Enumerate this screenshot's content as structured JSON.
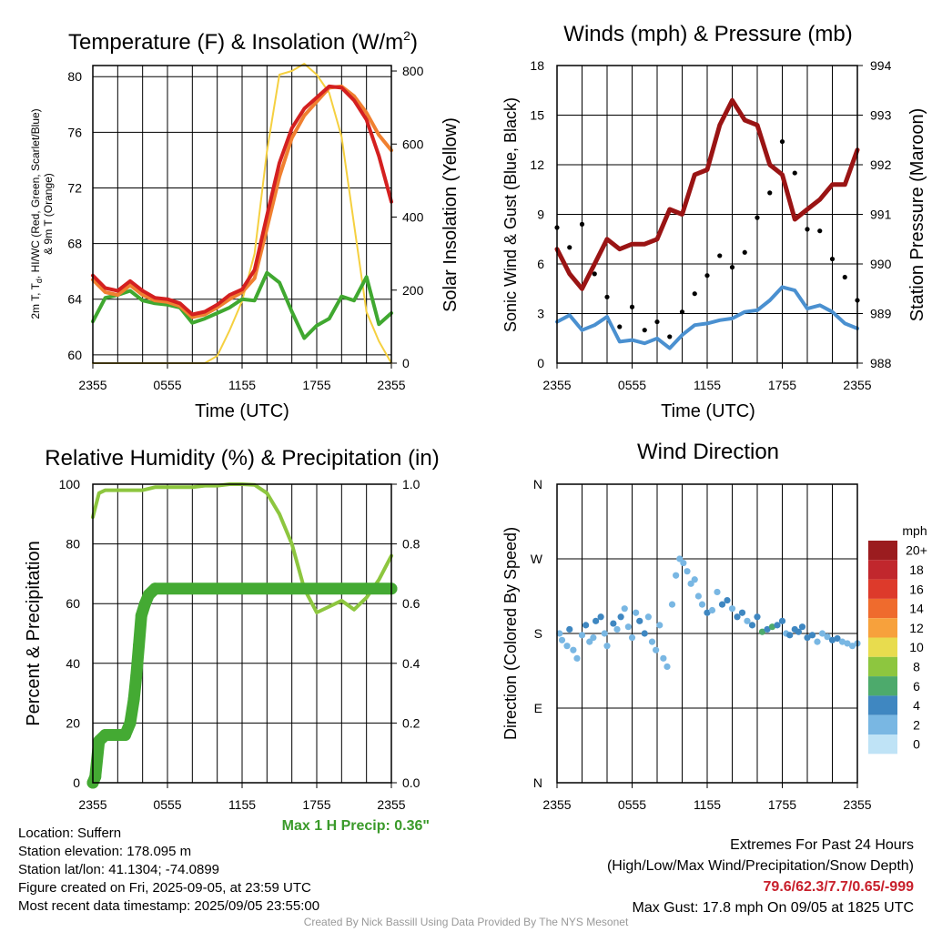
{
  "panels": {
    "temp": {
      "title": "Temperature (F) & Insolation (W/m",
      "title_sup": "2",
      "title_close": ")",
      "xlabel": "Time (UTC)",
      "ylabel_left_line1_pre": "2m T, T",
      "ylabel_left_line1_sub": "d",
      "ylabel_left_line1_post": ", HI/WC (Red, Green, Scarlet/Blue)",
      "ylabel_left_line2": "& 9m T (Orange)",
      "ylabel_right": "Solar Insolation (Yellow)"
    },
    "wind": {
      "title": "Winds (mph) & Pressure (mb)",
      "xlabel": "Time (UTC)",
      "ylabel_left": "Sonic Wind & Gust (Blue, Black)",
      "ylabel_right": "Station Pressure (Maroon)"
    },
    "rh": {
      "title": "Relative Humidity (%) & Precipitation (in)",
      "ylabel_left": "Percent & Precipitation",
      "max_precip": "Max 1 H Precip: 0.36\""
    },
    "dir": {
      "title": "Wind Direction",
      "ylabel_left": "Direction (Colored By Speed)",
      "legend_title": "mph"
    }
  },
  "info": {
    "location": "Location: Suffern",
    "elevation": "Station elevation: 178.095 m",
    "latlon": "Station lat/lon: 41.1304; -74.0899",
    "created": "Figure created on Fri, 2025-09-05, at 23:59 UTC",
    "recent": "Most recent data timestamp: 2025/09/05 23:55:00",
    "extremes_title": "Extremes For Past 24 Hours",
    "extremes_sub": "(High/Low/Max Wind/Precipitation/Snow Depth)",
    "extremes_values": "79.6/62.3/7.7/0.65/-999",
    "max_gust": "Max Gust: 17.8 mph On 09/05 at 1825 UTC",
    "credit": "Created By Nick Bassill Using Data Provided By The NYS Mesonet"
  },
  "chart_data": [
    {
      "type": "line",
      "panel": "temp",
      "x_ticks": [
        "2355",
        "0555",
        "1155",
        "1755",
        "2355"
      ],
      "x_hours": [
        0,
        6,
        12,
        18,
        24
      ],
      "y_left_ticks": [
        60,
        64,
        68,
        72,
        76,
        80
      ],
      "y_left_range": [
        59.4,
        80.8
      ],
      "y_right_ticks": [
        0,
        200,
        400,
        600,
        800
      ],
      "y_right_range": [
        0,
        815
      ],
      "colors": {
        "t2m": "#d42020",
        "t9m": "#f08030",
        "td": "#40a830",
        "solar": "#f5d040"
      },
      "series": [
        {
          "name": "2m T",
          "axis": "left",
          "x": [
            0,
            1,
            2,
            3,
            4,
            5,
            6,
            7,
            8,
            9,
            10,
            11,
            12,
            13,
            14,
            15,
            16,
            17,
            18,
            19,
            20,
            21,
            22,
            23,
            24
          ],
          "y": [
            65.7,
            64.8,
            64.6,
            65.3,
            64.6,
            64.1,
            64.0,
            63.7,
            62.9,
            63.1,
            63.6,
            64.3,
            64.7,
            66.1,
            70.0,
            73.8,
            76.3,
            77.7,
            78.5,
            79.3,
            79.2,
            78.3,
            76.9,
            74.3,
            71.0
          ]
        },
        {
          "name": "9m T",
          "axis": "left",
          "x": [
            0,
            1,
            2,
            3,
            4,
            5,
            6,
            7,
            8,
            9,
            10,
            11,
            12,
            13,
            14,
            15,
            16,
            17,
            18,
            19,
            20,
            21,
            22,
            23,
            24
          ],
          "y": [
            65.4,
            64.5,
            64.3,
            65.0,
            64.3,
            63.9,
            63.8,
            63.5,
            62.7,
            62.9,
            63.4,
            64.0,
            64.5,
            65.5,
            69.1,
            72.8,
            75.6,
            77.2,
            78.2,
            79.2,
            79.3,
            78.6,
            77.4,
            75.8,
            74.7
          ]
        },
        {
          "name": "Td",
          "axis": "left",
          "x": [
            0,
            1,
            2,
            3,
            4,
            5,
            6,
            7,
            8,
            9,
            10,
            11,
            12,
            13,
            14,
            15,
            16,
            17,
            18,
            19,
            20,
            21,
            22,
            23,
            24
          ],
          "y": [
            62.4,
            64.1,
            64.3,
            64.6,
            63.9,
            63.7,
            63.6,
            63.4,
            62.3,
            62.6,
            63.0,
            63.4,
            64.0,
            63.9,
            65.9,
            65.2,
            63.1,
            61.2,
            62.1,
            62.6,
            64.2,
            63.9,
            65.6,
            62.2,
            63.0
          ]
        },
        {
          "name": "Solar",
          "axis": "right",
          "x": [
            0,
            1,
            2,
            3,
            4,
            5,
            6,
            7,
            8,
            9,
            10,
            11,
            12,
            13,
            14,
            15,
            16,
            17,
            18,
            19,
            20,
            21,
            22,
            23,
            24
          ],
          "y": [
            0,
            0,
            0,
            0,
            0,
            0,
            0,
            0,
            0,
            0,
            20,
            90,
            170,
            300,
            580,
            790,
            800,
            820,
            790,
            740,
            620,
            380,
            140,
            60,
            0
          ]
        }
      ]
    },
    {
      "type": "line",
      "panel": "wind",
      "x_ticks": [
        "2355",
        "0555",
        "1155",
        "1755",
        "2355"
      ],
      "x_hours": [
        0,
        6,
        12,
        18,
        24
      ],
      "y_left_ticks": [
        0,
        3,
        6,
        9,
        12,
        15,
        18
      ],
      "y_left_range": [
        0,
        18
      ],
      "y_right_ticks": [
        988,
        989,
        990,
        991,
        992,
        993,
        994
      ],
      "y_right_range": [
        988,
        994
      ],
      "colors": {
        "wind": "#4a90d0",
        "gust": "#000000",
        "pressure": "#9a1414"
      },
      "series": [
        {
          "name": "Sonic Wind",
          "axis": "left",
          "x": [
            0,
            1,
            2,
            3,
            4,
            5,
            6,
            7,
            8,
            9,
            10,
            11,
            12,
            13,
            14,
            15,
            16,
            17,
            18,
            19,
            20,
            21,
            22,
            23,
            24
          ],
          "y": [
            2.5,
            2.9,
            2.0,
            2.3,
            2.8,
            1.3,
            1.4,
            1.2,
            1.5,
            0.9,
            1.7,
            2.3,
            2.4,
            2.6,
            2.7,
            3.1,
            3.2,
            3.8,
            4.6,
            4.4,
            3.3,
            3.5,
            3.1,
            2.4,
            2.1
          ]
        },
        {
          "name": "Gust",
          "axis": "left",
          "x": [
            0,
            1,
            2,
            3,
            4,
            5,
            6,
            7,
            8,
            9,
            10,
            11,
            12,
            13,
            14,
            15,
            16,
            17,
            18,
            19,
            20,
            21,
            22,
            23,
            24
          ],
          "y": [
            8.2,
            7.0,
            8.4,
            5.4,
            4.0,
            2.2,
            3.4,
            2.0,
            2.5,
            1.6,
            3.1,
            4.2,
            5.3,
            6.5,
            5.8,
            6.7,
            8.8,
            10.3,
            13.4,
            11.5,
            8.1,
            8.0,
            6.3,
            5.2,
            3.8
          ]
        },
        {
          "name": "Station Pressure",
          "axis": "right",
          "x": [
            0,
            1,
            2,
            3,
            4,
            5,
            6,
            7,
            8,
            9,
            10,
            11,
            12,
            13,
            14,
            15,
            16,
            17,
            18,
            19,
            20,
            21,
            22,
            23,
            24
          ],
          "y": [
            990.3,
            989.8,
            989.5,
            990.0,
            990.5,
            990.3,
            990.4,
            990.4,
            990.5,
            991.1,
            991.0,
            991.8,
            991.9,
            992.8,
            993.3,
            992.9,
            992.8,
            992.0,
            991.8,
            990.9,
            991.1,
            991.3,
            991.6,
            991.6,
            992.3
          ]
        }
      ]
    },
    {
      "type": "line",
      "panel": "rh",
      "x_ticks": [
        "2355",
        "0555",
        "1155",
        "1755",
        "2355"
      ],
      "x_hours": [
        0,
        6,
        12,
        18,
        24
      ],
      "y_left_ticks": [
        0,
        20,
        40,
        60,
        80,
        100
      ],
      "y_left_range": [
        0,
        100
      ],
      "y_right_ticks": [
        "0.0",
        "0.2",
        "0.4",
        "0.6",
        "0.8",
        "1.0"
      ],
      "y_right_range": [
        0,
        1.0
      ],
      "colors": {
        "rh": "#8dc63f",
        "precip": "#44aa33"
      },
      "series": [
        {
          "name": "Relative Humidity",
          "axis": "left",
          "x": [
            0,
            0.5,
            1,
            2,
            3,
            4,
            5,
            6,
            7,
            8,
            9,
            10,
            11,
            12,
            13,
            14,
            15,
            16,
            17,
            18,
            19,
            20,
            21,
            22,
            23,
            24
          ],
          "y": [
            89,
            97,
            98,
            98,
            98,
            98,
            99,
            99,
            99,
            99,
            99.5,
            99.5,
            100,
            100,
            99.8,
            97,
            90,
            80,
            65,
            57,
            59,
            61,
            58,
            62,
            68,
            76
          ]
        },
        {
          "name": "Precipitation",
          "axis": "right",
          "x": [
            0,
            0.2,
            0.5,
            1,
            2,
            2.6,
            3,
            3.3,
            3.5,
            3.7,
            3.9,
            4.2,
            4.5,
            5,
            6,
            8,
            10,
            12,
            14,
            16,
            18,
            20,
            22,
            24
          ],
          "y": [
            0.0,
            0.02,
            0.14,
            0.16,
            0.16,
            0.16,
            0.2,
            0.28,
            0.36,
            0.46,
            0.56,
            0.6,
            0.63,
            0.65,
            0.65,
            0.65,
            0.65,
            0.65,
            0.65,
            0.65,
            0.65,
            0.65,
            0.65,
            0.65
          ]
        }
      ]
    },
    {
      "type": "scatter",
      "panel": "dir",
      "x_ticks": [
        "2355",
        "0555",
        "1155",
        "1755",
        "2355"
      ],
      "x_hours": [
        0,
        6,
        12,
        18,
        24
      ],
      "y_ticks": [
        "N",
        "E",
        "S",
        "W",
        "N"
      ],
      "y_range_deg": [
        360,
        0
      ],
      "legend": {
        "labels": [
          "20+",
          "18",
          "16",
          "14",
          "12",
          "10",
          "8",
          "6",
          "4",
          "2",
          "0"
        ],
        "colors": [
          "#9b1c1f",
          "#c1272d",
          "#dd3a2b",
          "#ef6b2d",
          "#f7a13c",
          "#e8dc4e",
          "#8dc63f",
          "#4daa6c",
          "#3f87c1",
          "#79b7e3",
          "#bfe3f6"
        ]
      },
      "series": [
        {
          "name": "Direction",
          "x": [
            0.2,
            0.4,
            0.8,
            1.0,
            1.3,
            1.6,
            2.0,
            2.3,
            2.6,
            2.9,
            3.1,
            3.5,
            3.8,
            4.0,
            4.5,
            4.8,
            5.1,
            5.4,
            5.7,
            6.0,
            6.3,
            6.6,
            7.0,
            7.3,
            7.6,
            7.9,
            8.2,
            8.5,
            8.8,
            9.2,
            9.5,
            9.8,
            10.1,
            10.4,
            10.7,
            11.0,
            11.3,
            11.6,
            12.0,
            12.4,
            12.8,
            13.2,
            13.6,
            14.0,
            14.4,
            14.8,
            15.2,
            15.6,
            16.0,
            16.4,
            16.8,
            17.2,
            17.6,
            18.0,
            18.3,
            18.6,
            19.0,
            19.3,
            19.6,
            20.0,
            20.4,
            20.8,
            21.2,
            21.6,
            22.0,
            22.4,
            22.8,
            23.2,
            23.6,
            24.0
          ],
          "y": [
            180,
            172,
            165,
            185,
            160,
            150,
            178,
            190,
            170,
            175,
            195,
            200,
            180,
            165,
            192,
            185,
            200,
            210,
            188,
            175,
            205,
            195,
            180,
            200,
            170,
            160,
            190,
            150,
            140,
            215,
            250,
            270,
            265,
            255,
            240,
            245,
            225,
            215,
            205,
            208,
            230,
            215,
            220,
            210,
            200,
            205,
            195,
            190,
            200,
            182,
            185,
            188,
            190,
            195,
            180,
            178,
            185,
            182,
            188,
            175,
            178,
            170,
            180,
            176,
            172,
            174,
            170,
            168,
            165,
            168
          ],
          "speed": [
            2,
            1,
            1,
            3,
            2,
            1,
            2,
            3,
            2,
            2,
            4,
            3,
            2,
            2,
            4,
            2,
            3,
            1,
            1,
            2,
            2,
            3,
            4,
            2,
            1,
            2,
            2,
            1,
            2,
            1,
            1,
            1,
            1,
            1,
            2,
            1,
            2,
            2,
            3,
            2,
            2,
            4,
            3,
            2,
            4,
            3,
            2,
            3,
            4,
            6,
            4,
            5,
            3,
            4,
            2,
            3,
            4,
            3,
            3,
            4,
            3,
            2,
            2,
            2,
            3,
            3,
            2,
            2,
            2,
            2
          ]
        }
      ]
    }
  ]
}
